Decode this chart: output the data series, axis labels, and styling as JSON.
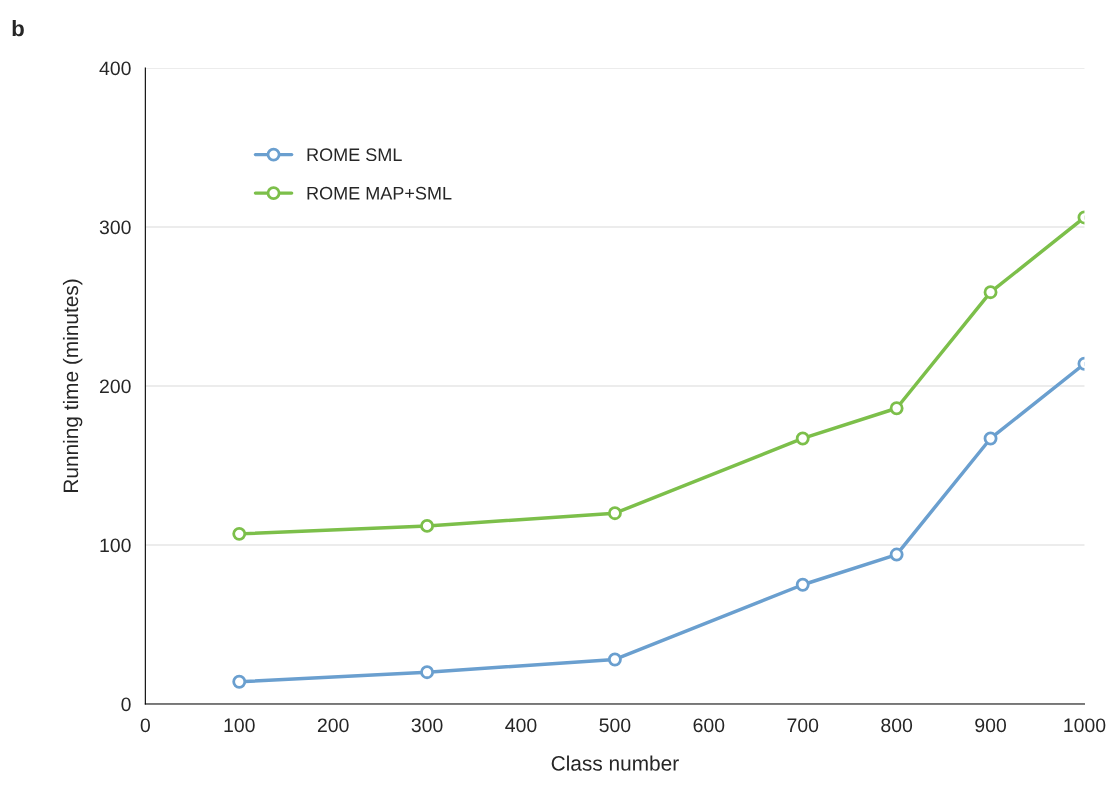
{
  "chart_data": {
    "type": "line",
    "xlabel": "Class number",
    "ylabel": "Running time (minutes)",
    "annotations": [
      "b"
    ],
    "x": [
      100,
      300,
      500,
      700,
      800,
      900,
      1000
    ],
    "series": [
      {
        "name": "ROME SML",
        "color": "#6a9fcf",
        "values": [
          14,
          20,
          28,
          75,
          94,
          167,
          214
        ]
      },
      {
        "name": "ROME MAP+SML",
        "color": "#7cbf4a",
        "values": [
          107,
          112,
          120,
          167,
          186,
          259,
          306
        ]
      }
    ],
    "xlim": [
      0,
      1000
    ],
    "xticks": [
      0,
      100,
      200,
      300,
      400,
      500,
      600,
      700,
      800,
      900,
      1000
    ],
    "ylim": [
      0,
      400
    ],
    "yticks": [
      0,
      100,
      200,
      300,
      400
    ],
    "grid": "y",
    "legend": "top left",
    "marker": "circle",
    "line_style": "solid"
  }
}
